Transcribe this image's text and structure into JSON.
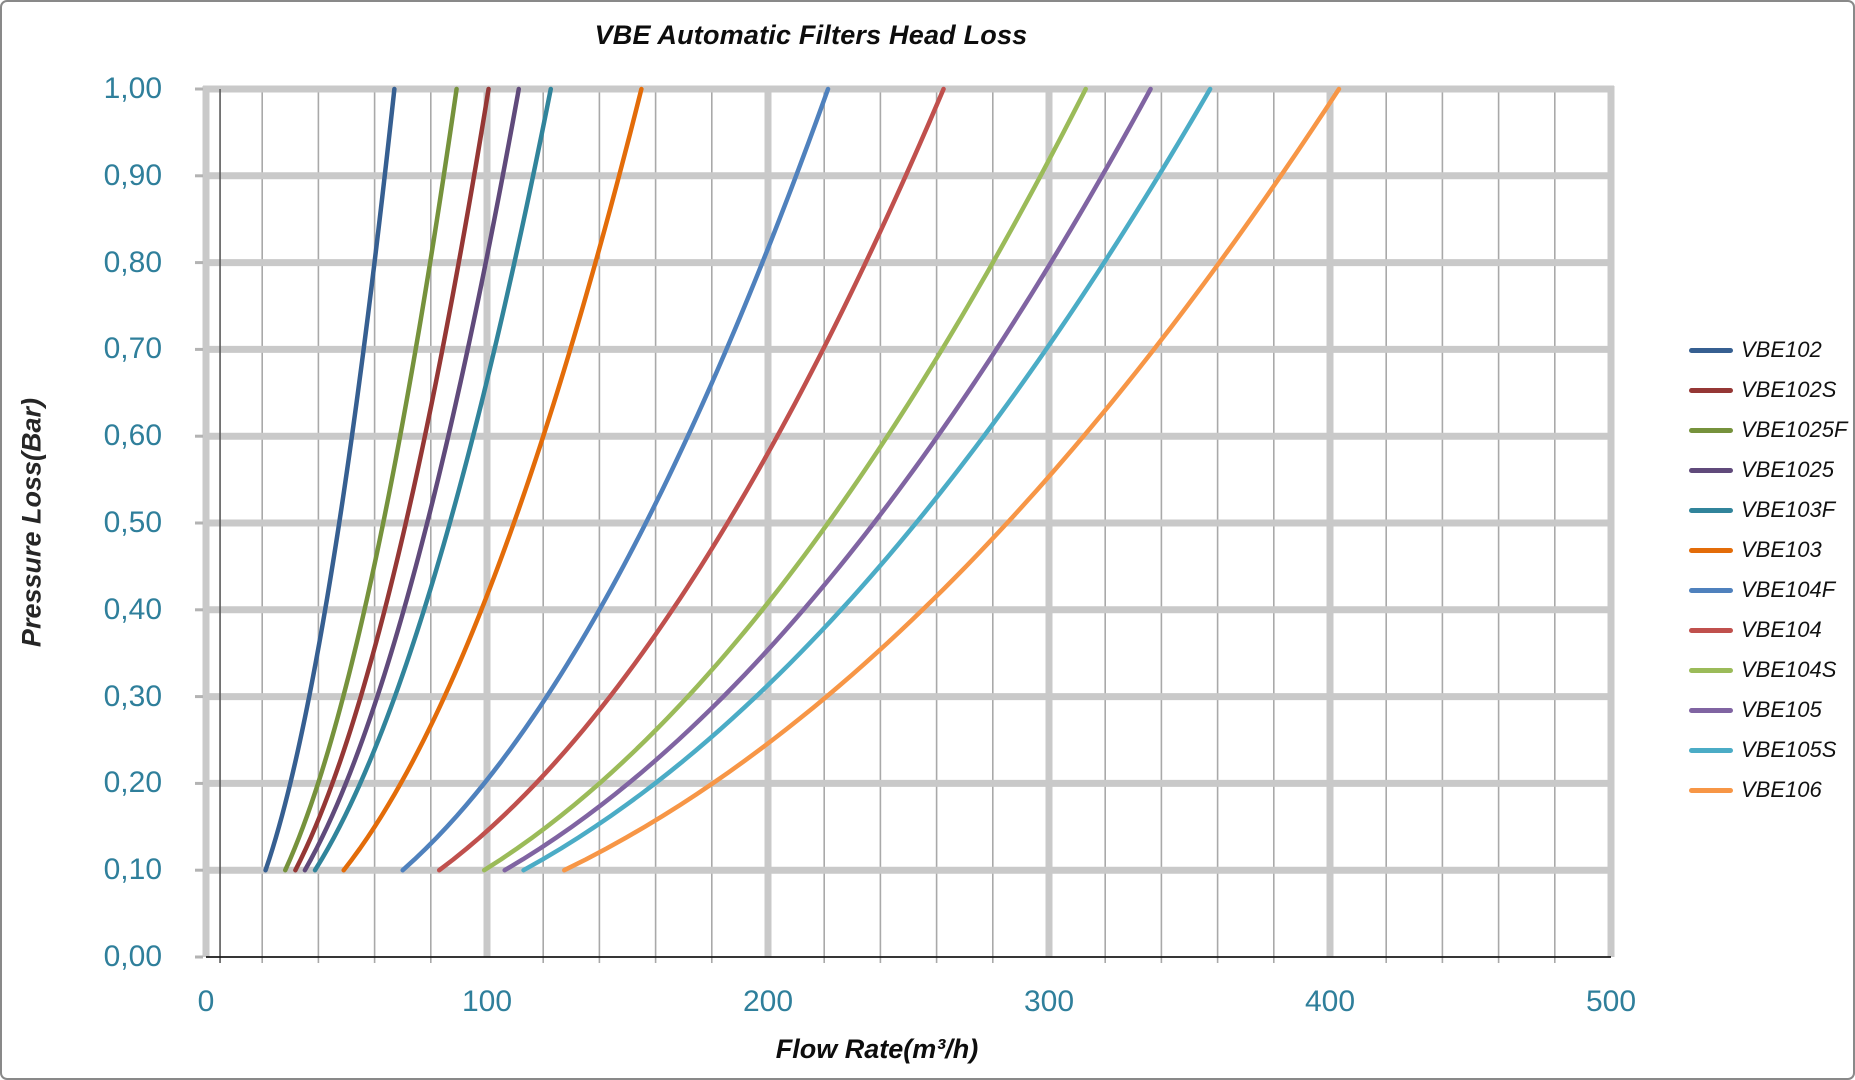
{
  "title": "VBE Automatic Filters Head Loss",
  "x_axis": {
    "title": "Flow Rate(m³/h)",
    "min": 0,
    "max": 500,
    "major_unit": 100,
    "minor_unit": 20,
    "tick_labels": [
      "0",
      "100",
      "200",
      "300",
      "400",
      "500"
    ],
    "tick_values": [
      0,
      100,
      200,
      300,
      400,
      500
    ],
    "label_color": "#2f7f9b"
  },
  "y_axis": {
    "title": "Pressure Loss(Bar)",
    "min": 0,
    "max": 1,
    "major_unit": 0.1,
    "tick_labels": [
      "0,00",
      "0,10",
      "0,20",
      "0,30",
      "0,40",
      "0,50",
      "0,60",
      "0,70",
      "0,80",
      "0,90",
      "1,00"
    ],
    "tick_values": [
      0,
      0.1,
      0.2,
      0.3,
      0.4,
      0.5,
      0.6,
      0.7,
      0.8,
      0.9,
      1.0
    ],
    "label_color": "#2f7f9b"
  },
  "grid": {
    "major_color": "#c9c9c9",
    "minor_color": "#a9a9a9",
    "axis_line_color": "#1a1a1a",
    "inner_axis_line_color": "#595959"
  },
  "legend": {
    "position": "right",
    "items": [
      "VBE102",
      "VBE102S",
      "VBE1025F",
      "VBE1025",
      "VBE103F",
      "VBE103",
      "VBE104F",
      "VBE104",
      "VBE104S",
      "VBE105",
      "VBE105S",
      "VBE106"
    ]
  },
  "chart_data": {
    "type": "line",
    "title": "VBE Automatic Filters Head Loss",
    "xlabel": "Flow Rate(m³/h)",
    "ylabel": "Pressure Loss(Bar)",
    "xlim": [
      0,
      500
    ],
    "ylim": [
      0,
      1
    ],
    "grid": "on",
    "legend_position": "right",
    "pressure_points": [
      0.1,
      0.2,
      0.3,
      0.4,
      0.5,
      0.6,
      0.7,
      0.8,
      0.9,
      1.0
    ],
    "series": [
      {
        "name": "VBE102",
        "color": "#365f91",
        "q01": 21.2,
        "flow": [
          21.2,
          30.0,
          36.7,
          42.4,
          47.4,
          51.9,
          56.1,
          60.0,
          63.6,
          67.0
        ]
      },
      {
        "name": "VBE102S",
        "color": "#953735",
        "q01": 31.8,
        "flow": [
          31.8,
          45.0,
          55.1,
          63.6,
          71.1,
          77.9,
          84.1,
          89.9,
          95.4,
          100.6
        ]
      },
      {
        "name": "VBE1025F",
        "color": "#76923c",
        "q01": 28.2,
        "flow": [
          28.2,
          39.9,
          48.8,
          56.4,
          63.1,
          69.1,
          74.6,
          79.8,
          84.6,
          89.2
        ]
      },
      {
        "name": "VBE1025",
        "color": "#604a7b",
        "q01": 35.2,
        "flow": [
          35.2,
          49.8,
          61.0,
          70.4,
          78.7,
          86.2,
          93.1,
          99.6,
          105.6,
          111.3
        ]
      },
      {
        "name": "VBE103F",
        "color": "#31849b",
        "q01": 38.8,
        "flow": [
          38.8,
          54.9,
          67.2,
          77.6,
          86.8,
          95.0,
          102.7,
          109.7,
          116.4,
          122.7
        ]
      },
      {
        "name": "VBE103",
        "color": "#e36c09",
        "q01": 49.0,
        "flow": [
          49.0,
          69.3,
          84.9,
          98.0,
          109.6,
          120.0,
          129.6,
          138.6,
          147.0,
          155.0
        ]
      },
      {
        "name": "VBE104F",
        "color": "#4f81bd",
        "q01": 70.0,
        "flow": [
          70.0,
          99.0,
          121.2,
          140.0,
          156.5,
          171.5,
          185.2,
          198.0,
          210.0,
          221.4
        ]
      },
      {
        "name": "VBE104",
        "color": "#c0504d",
        "q01": 83.0,
        "flow": [
          83.0,
          117.4,
          143.8,
          166.0,
          185.6,
          203.3,
          219.6,
          234.8,
          249.0,
          262.5
        ]
      },
      {
        "name": "VBE104S",
        "color": "#9bbb59",
        "q01": 99.0,
        "flow": [
          99.0,
          140.0,
          171.5,
          198.0,
          221.4,
          242.5,
          261.9,
          280.0,
          297.0,
          313.1
        ]
      },
      {
        "name": "VBE105",
        "color": "#8064a2",
        "q01": 106.3,
        "flow": [
          106.3,
          150.3,
          184.1,
          212.6,
          237.7,
          260.4,
          281.2,
          300.7,
          318.9,
          336.1
        ]
      },
      {
        "name": "VBE105S",
        "color": "#4bacc6",
        "q01": 113.0,
        "flow": [
          113.0,
          159.8,
          195.7,
          226.0,
          252.7,
          276.8,
          299.0,
          319.6,
          339.0,
          357.3
        ]
      },
      {
        "name": "VBE106",
        "color": "#f79646",
        "q01": 127.5,
        "flow": [
          127.5,
          180.3,
          220.8,
          255.0,
          285.1,
          312.3,
          337.3,
          360.6,
          382.5,
          403.2
        ]
      }
    ]
  }
}
